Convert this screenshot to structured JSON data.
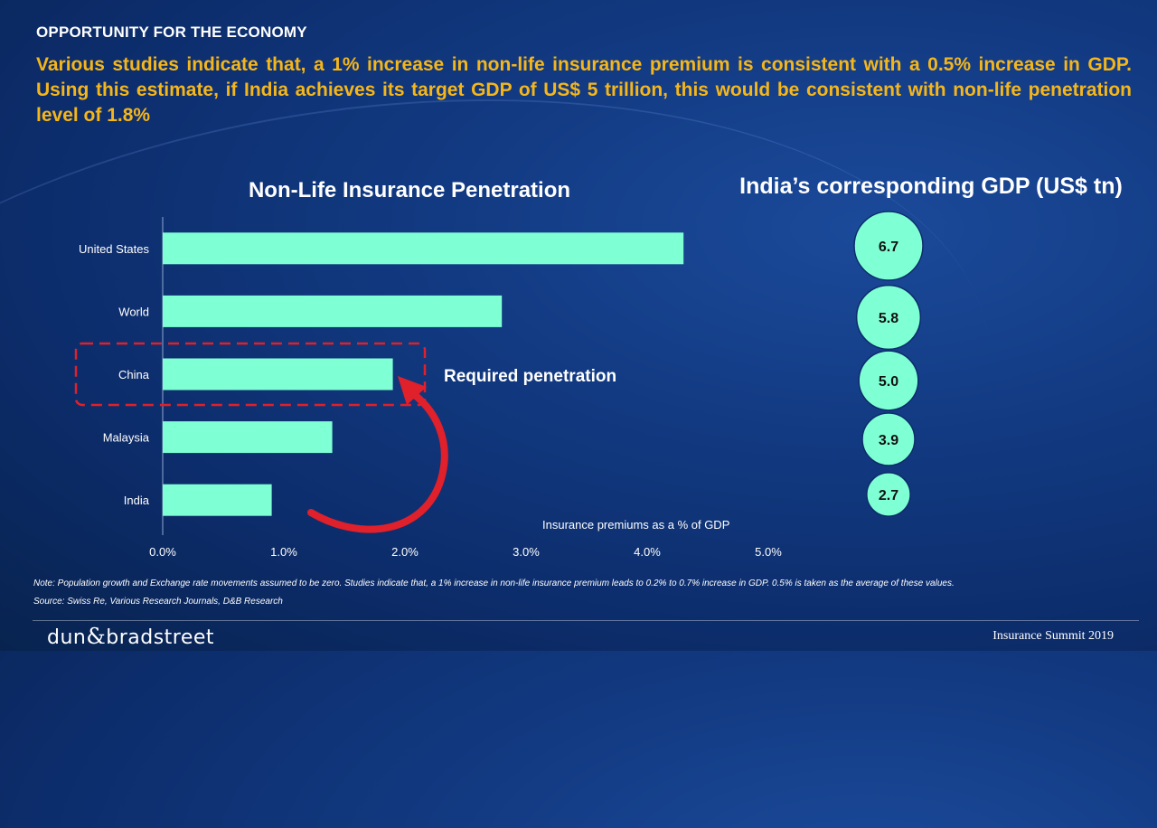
{
  "section_heading": "OPPORTUNITY FOR THE ECONOMY",
  "intro_text": "Various studies indicate that, a 1% increase in non-life insurance premium is consistent with a 0.5% increase in GDP. Using this estimate, if India achieves its target GDP of US$ 5 trillion, this would be consistent with non-life penetration level of 1.8%",
  "annotation": "Required penetration",
  "chart_data": [
    {
      "type": "bar",
      "orientation": "horizontal",
      "title": "Non-Life Insurance Penetration",
      "xlabel": "Insurance premiums as a % of GDP",
      "categories": [
        "United States",
        "World",
        "China",
        "Malaysia",
        "India"
      ],
      "values": [
        4.3,
        2.8,
        1.9,
        1.4,
        0.9
      ],
      "xlim": [
        0,
        5
      ],
      "ticks": [
        "0.0%",
        "1.0%",
        "2.0%",
        "3.0%",
        "4.0%",
        "5.0%"
      ],
      "bar_color": "#7fffd4",
      "highlight_category": "China"
    },
    {
      "type": "bubble",
      "title": "India’s corresponding GDP (US$ tn)",
      "labels": [
        "6.7",
        "5.8",
        "5.0",
        "3.9",
        "2.7"
      ],
      "values": [
        6.7,
        5.8,
        5.0,
        3.9,
        2.7
      ],
      "bubble_color": "#7fffd4"
    }
  ],
  "note": "Note: Population growth and Exchange rate movements assumed to be zero. Studies indicate that, a 1% increase in non-life insurance premium leads to 0.2% to 0.7% increase in GDP. 0.5% is taken as the average of these values.",
  "source": "Source: Swiss Re, Various Research Journals, D&B Research",
  "logo": {
    "left": "dun",
    "amp": "&",
    "right": "bradstreet"
  },
  "event_name": "Insurance Summit 2019",
  "colors": {
    "accent": "#f5b61a",
    "bar": "#7fffd4",
    "arrow": "#e0202a",
    "highlight_box": "#e0202a"
  }
}
